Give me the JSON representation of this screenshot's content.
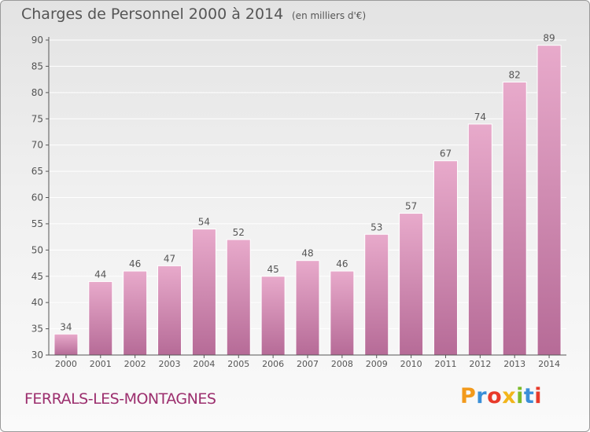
{
  "header": {
    "title": "Charges de Personnel 2000 à 2014",
    "subtitle": "(en milliers d'€)"
  },
  "footer": {
    "place": "FERRALS-LES-MONTAGNES",
    "logo": {
      "letters": [
        "P",
        "r",
        "o",
        "x",
        "i",
        "t",
        "i"
      ],
      "colors": [
        "#f29a1c",
        "#3a8fd8",
        "#e83a2a",
        "#f2b51c",
        "#7dbb2a",
        "#3a8fd8",
        "#e83a2a"
      ]
    }
  },
  "colors": {
    "bar_top": "#e8aacb",
    "bar_bottom": "#b66b97",
    "bar_stroke": "#ffffff",
    "grid": "#ffffff",
    "axis": "#555555",
    "text": "#555555",
    "place": "#9c2f6e"
  },
  "chart_data": {
    "type": "bar",
    "categories": [
      "2000",
      "2001",
      "2002",
      "2003",
      "2004",
      "2005",
      "2006",
      "2007",
      "2008",
      "2009",
      "2010",
      "2011",
      "2012",
      "2013",
      "2014"
    ],
    "values": [
      34,
      44,
      46,
      47,
      54,
      52,
      45,
      48,
      46,
      53,
      57,
      67,
      74,
      82,
      89
    ],
    "data_labels": [
      "34",
      "44",
      "46",
      "47",
      "54",
      "52",
      "45",
      "48",
      "46",
      "53",
      "57",
      "67",
      "74",
      "82",
      "89"
    ],
    "title": "Charges de Personnel 2000 à 2014",
    "subtitle": "(en milliers d'€)",
    "xlabel": "",
    "ylabel": "",
    "ylim": [
      30,
      90
    ],
    "yticks": [
      30,
      35,
      40,
      45,
      50,
      55,
      60,
      65,
      70,
      75,
      80,
      85,
      90
    ],
    "grid": true,
    "legend": "none"
  }
}
